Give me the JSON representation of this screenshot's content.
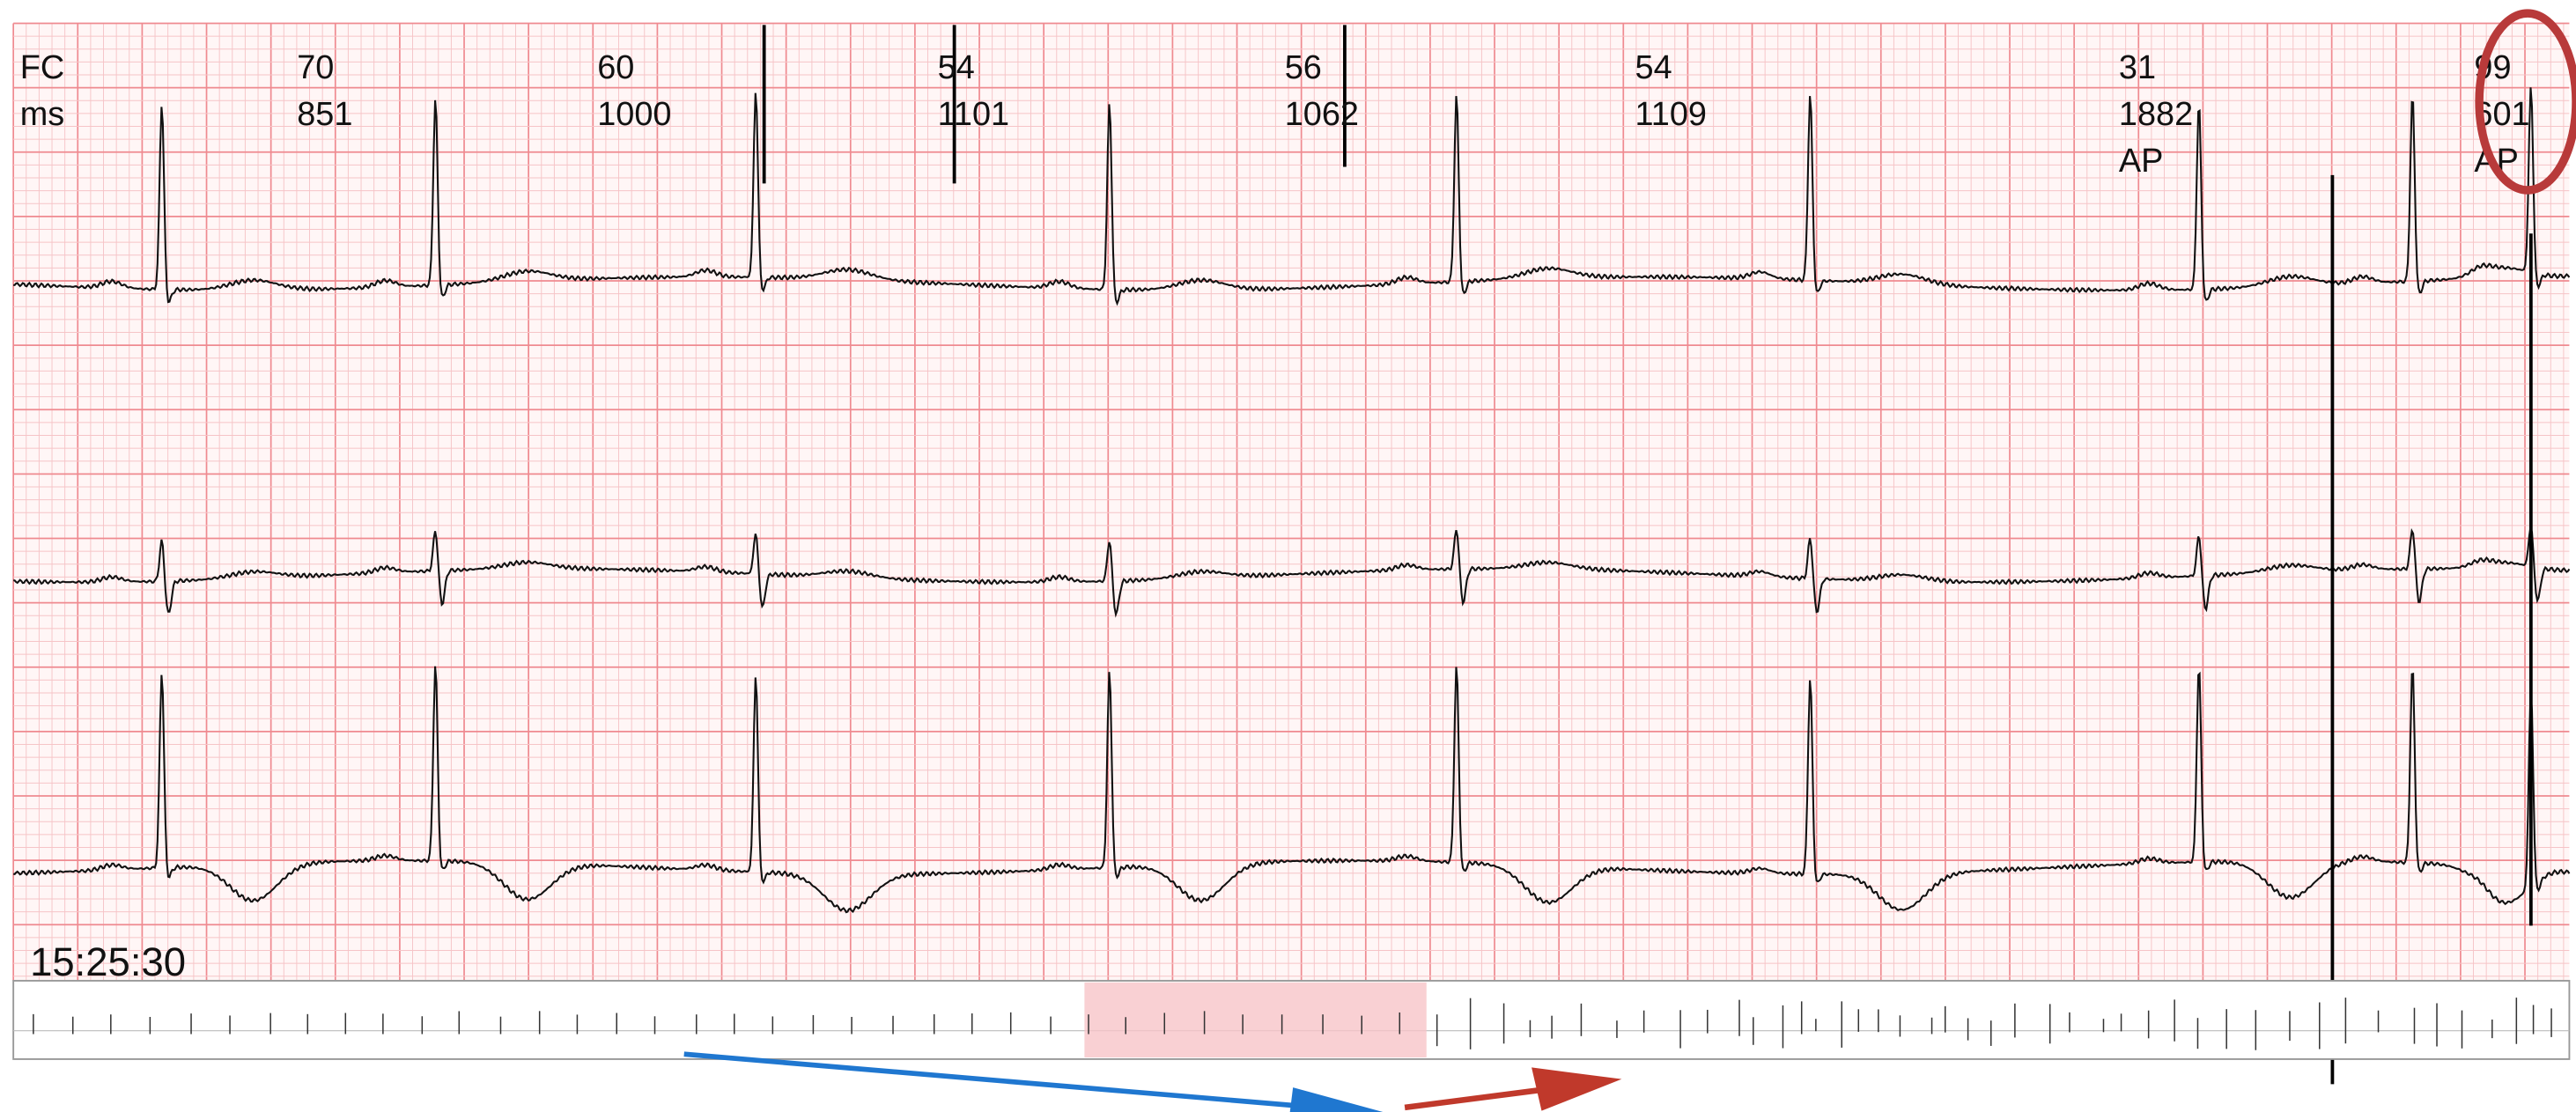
{
  "header": {
    "rate_label": "FC",
    "interval_label": "ms"
  },
  "beats": [
    {
      "rate": 70,
      "interval": 851
    },
    {
      "rate": 60,
      "interval": 1000
    },
    {
      "rate": 54,
      "interval": 1101
    },
    {
      "rate": 56,
      "interval": 1062
    },
    {
      "rate": 54,
      "interval": 1109
    },
    {
      "rate": 31,
      "interval": 1882,
      "pacing": "AP"
    },
    {
      "rate": 99,
      "interval": 601,
      "pacing": "AP"
    }
  ],
  "timestamp": "15:25:30"
}
